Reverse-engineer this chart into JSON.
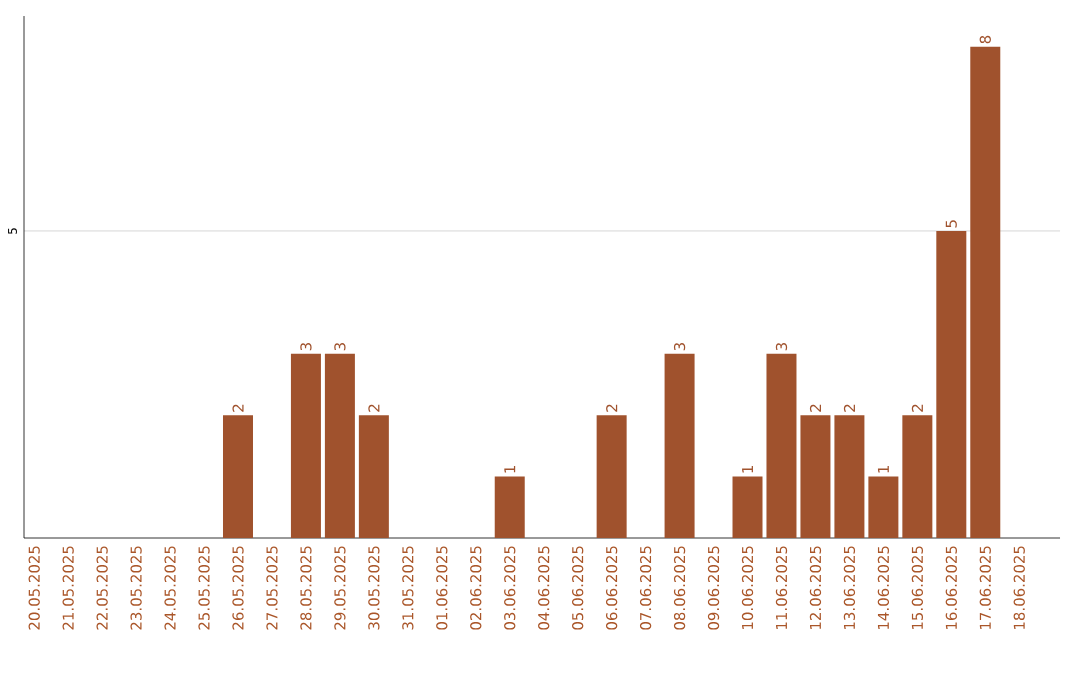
{
  "chart_data": {
    "type": "bar",
    "categories": [
      "20.05.2025",
      "21.05.2025",
      "22.05.2025",
      "23.05.2025",
      "24.05.2025",
      "25.05.2025",
      "26.05.2025",
      "27.05.2025",
      "28.05.2025",
      "29.05.2025",
      "30.05.2025",
      "31.05.2025",
      "01.06.2025",
      "02.06.2025",
      "03.06.2025",
      "04.06.2025",
      "05.06.2025",
      "06.06.2025",
      "07.06.2025",
      "08.06.2025",
      "09.06.2025",
      "10.06.2025",
      "11.06.2025",
      "12.06.2025",
      "13.06.2025",
      "14.06.2025",
      "15.06.2025",
      "16.06.2025",
      "17.06.2025",
      "18.06.2025"
    ],
    "values": [
      0,
      0,
      0,
      0,
      0,
      0,
      2,
      0,
      3,
      3,
      2,
      0,
      0,
      0,
      1,
      0,
      0,
      2,
      0,
      3,
      0,
      1,
      3,
      2,
      2,
      1,
      2,
      5,
      8,
      0
    ],
    "value_labels": [
      null,
      null,
      null,
      null,
      null,
      null,
      "2",
      null,
      "3",
      "3",
      "2",
      null,
      null,
      null,
      "1",
      null,
      null,
      "2",
      null,
      "3",
      null,
      "1",
      "3",
      "2",
      "2",
      "1",
      "2",
      "5",
      "8",
      null
    ],
    "color": "#a0522d",
    "ylim": [
      0,
      8.5
    ],
    "yticks": [
      5
    ],
    "grid": "y"
  }
}
